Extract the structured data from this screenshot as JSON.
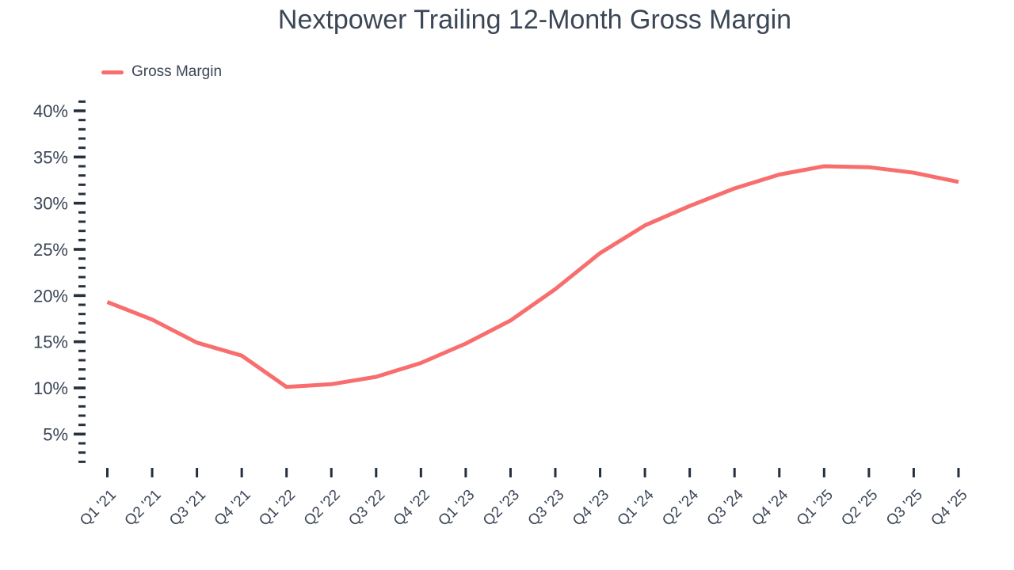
{
  "chart_data": {
    "type": "line",
    "title": "Nextpower Trailing 12-Month Gross Margin",
    "xlabel": "",
    "ylabel": "",
    "categories": [
      "Q1 '21",
      "Q2 '21",
      "Q3 '21",
      "Q4 '21",
      "Q1 '22",
      "Q2 '22",
      "Q3 '22",
      "Q4 '22",
      "Q1 '23",
      "Q2 '23",
      "Q3 '23",
      "Q4 '23",
      "Q1 '24",
      "Q2 '24",
      "Q3 '24",
      "Q4 '24",
      "Q1 '25",
      "Q2 '25",
      "Q3 '25",
      "Q4 '25"
    ],
    "series": [
      {
        "name": "Gross Margin",
        "values": [
          19.3,
          17.4,
          14.9,
          13.5,
          10.1,
          10.4,
          11.2,
          12.7,
          14.8,
          17.3,
          20.7,
          24.6,
          27.6,
          29.7,
          31.6,
          33.1,
          34.0,
          33.9,
          33.3,
          32.3
        ]
      }
    ],
    "y_axis": {
      "unit": "%",
      "major_ticks": [
        40,
        35,
        30,
        25,
        20,
        15,
        10,
        5
      ],
      "minor_tick_step": 1,
      "axis_top_value": 41,
      "axis_bottom_value": 2
    },
    "x_axis": {
      "tick_count": 20,
      "label_rotation_deg": -45
    },
    "legend_position": "top-left",
    "grid": false,
    "colors": {
      "line": "#f86e6e",
      "text": "#3b4656",
      "tick": "#262f3d"
    }
  }
}
